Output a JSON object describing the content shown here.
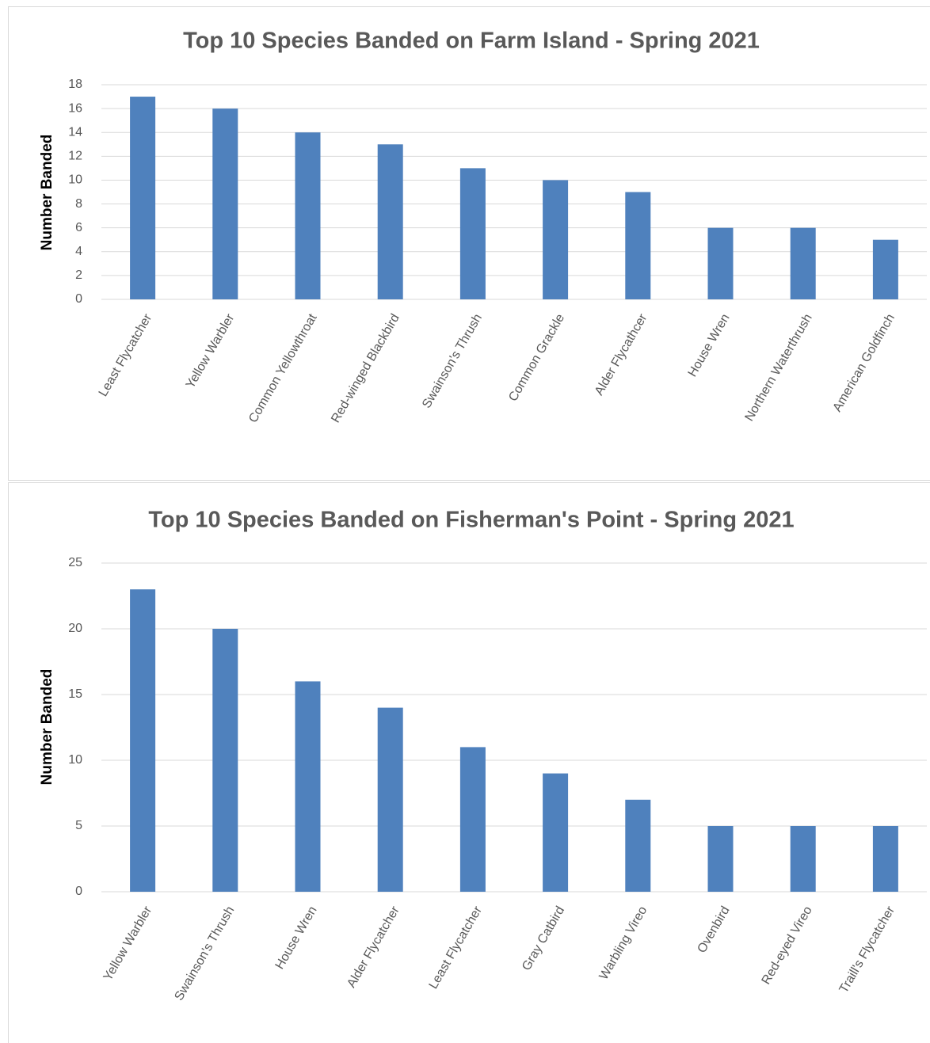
{
  "chart_data": [
    {
      "type": "bar",
      "title": "Top 10 Species Banded on Farm Island - Spring 2021",
      "y_label": "Number Banded",
      "categories": [
        "Least Flycatcher",
        "Yellow Warbler",
        "Common Yellowthroat",
        "Red-winged Blackbird",
        "Swainson's Thrush",
        "Common Grackle",
        "Alder Flycathcer",
        "House Wren",
        "Northern Waterthrush",
        "American Goldfinch"
      ],
      "values": [
        17,
        16,
        14,
        13,
        11,
        10,
        9,
        6,
        6,
        5
      ],
      "color": "#4f81bd",
      "ylim": [
        0,
        18
      ],
      "yticks": [
        0,
        2,
        4,
        6,
        8,
        10,
        12,
        14,
        16,
        18
      ],
      "grid": true
    },
    {
      "type": "bar",
      "title": "Top 10 Species Banded on Fisherman's Point - Spring 2021",
      "y_label": "Number Banded",
      "categories": [
        "Yellow Warbler",
        "Swainson's Thrush",
        "House Wren",
        "Alder Flycatcher",
        "Least Flycatcher",
        "Gray Catbird",
        "Warbling Vireo",
        "Ovenbird",
        "Red-eyed Vireo",
        "Traill's Flycatcher"
      ],
      "values": [
        23,
        20,
        16,
        14,
        11,
        9,
        7,
        5,
        5,
        5
      ],
      "color": "#4f81bd",
      "ylim": [
        0,
        25
      ],
      "yticks": [
        0,
        5,
        10,
        15,
        20,
        25
      ],
      "grid": true
    }
  ]
}
